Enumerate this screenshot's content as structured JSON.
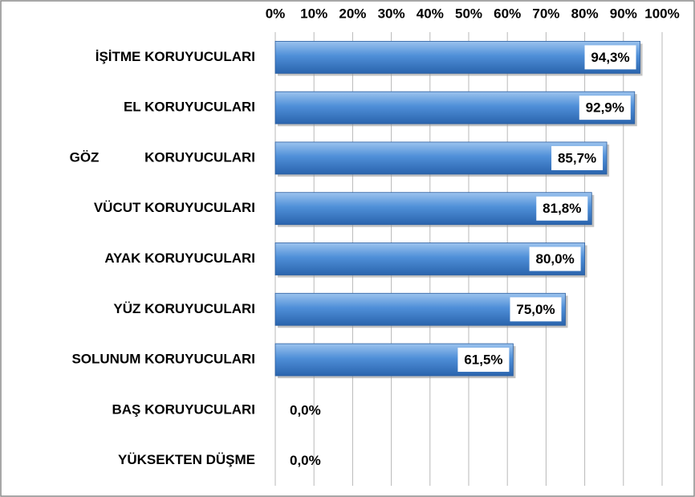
{
  "chart_data": {
    "type": "bar",
    "orientation": "horizontal",
    "categories": [
      "İŞİTME KORUYUCULARI",
      "EL KORUYUCULARI",
      "GÖZ            KORUYUCULARI",
      "VÜCUT KORUYUCULARI",
      "AYAK KORUYUCULARI",
      "YÜZ KORUYUCULARI",
      "SOLUNUM KORUYUCULARI",
      "BAŞ KORUYUCULARI",
      "YÜKSEKTEN DÜŞME"
    ],
    "values": [
      94.3,
      92.9,
      85.7,
      81.8,
      80.0,
      75.0,
      61.5,
      0,
      0
    ],
    "value_labels": [
      "94,3%",
      "92,9%",
      "85,7%",
      "81,8%",
      "80,0%",
      "75,0%",
      "61,5%",
      "0,0%",
      "0,0%"
    ],
    "color": "#3f7fcc",
    "xlim": [
      0,
      100
    ],
    "xticks": [
      {
        "value": 0,
        "label": "0%"
      },
      {
        "value": 10,
        "label": "10%"
      },
      {
        "value": 20,
        "label": "20%"
      },
      {
        "value": 30,
        "label": "30%"
      },
      {
        "value": 40,
        "label": "40%"
      },
      {
        "value": 50,
        "label": "50%"
      },
      {
        "value": 60,
        "label": "60%"
      },
      {
        "value": 70,
        "label": "70%"
      },
      {
        "value": 80,
        "label": "80%"
      },
      {
        "value": 90,
        "label": "90%"
      },
      {
        "value": 100,
        "label": "100%"
      }
    ],
    "grid": true
  }
}
